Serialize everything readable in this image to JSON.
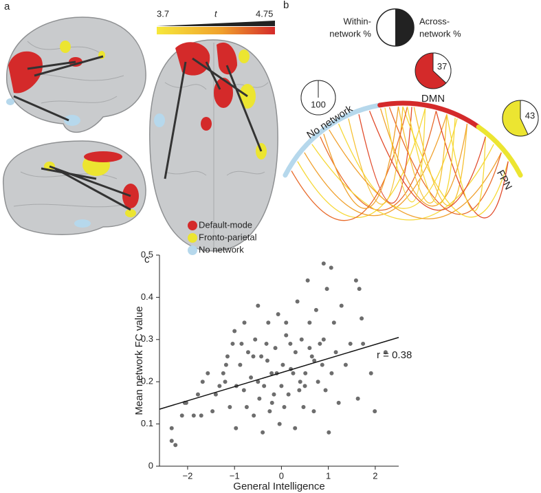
{
  "panel_labels": [
    "a",
    "b",
    "c"
  ],
  "colorbar": {
    "min": "3.7",
    "label": "t",
    "max": "4.75"
  },
  "legend": [
    {
      "name": "Default-mode",
      "color": "#d42a2a"
    },
    {
      "name": "Fronto-parietal",
      "color": "#ece531"
    },
    {
      "name": "No network",
      "color": "#b6d8ec"
    }
  ],
  "pie_key": {
    "within": [
      "Within-",
      "network %"
    ],
    "across": [
      "Across-",
      "network %"
    ]
  },
  "networks": [
    {
      "name": "No network",
      "within_pct": 100,
      "color": "#b6d8ec"
    },
    {
      "name": "DMN",
      "within_pct": 37,
      "color": "#d42a2a"
    },
    {
      "name": "FPN",
      "within_pct": 43,
      "color": "#ece531"
    }
  ],
  "chart_data": {
    "type": "scatter",
    "xlabel": "General Intelligence",
    "ylabel": "Mean network FC value",
    "annotation": "r = 0.38",
    "color": "#6d6d6d",
    "xlim": [
      -2.6,
      2.5
    ],
    "ylim": [
      0,
      0.5
    ],
    "xticks": [
      {
        "value": -2,
        "label": "−2"
      },
      {
        "value": -1,
        "label": "−1"
      },
      0,
      1,
      2
    ],
    "yticks": [
      0,
      0.1,
      0.2,
      0.3,
      0.4,
      0.5
    ],
    "fit_line": {
      "x": [
        -2.6,
        2.5
      ],
      "y": [
        0.135,
        0.305
      ]
    },
    "x": [
      -2.34,
      -2.26,
      -2.34,
      -2.12,
      -2.06,
      -2.03,
      -1.87,
      -1.78,
      -1.71,
      -1.68,
      -1.57,
      -1.47,
      -1.4,
      -1.32,
      -1.24,
      -1.18,
      -1.15,
      -1.1,
      -1.04,
      -1.0,
      -0.97,
      -0.96,
      -0.88,
      -0.85,
      -0.79,
      -0.74,
      -0.71,
      -0.65,
      -0.59,
      -0.56,
      -0.5,
      -0.47,
      -0.43,
      -0.4,
      -0.37,
      -0.32,
      -0.28,
      -0.25,
      -0.21,
      -0.16,
      -0.13,
      -0.07,
      -0.04,
      0,
      0.03,
      0.06,
      0.1,
      0.15,
      0.19,
      0.25,
      0.29,
      0.34,
      0.38,
      0.43,
      0.47,
      0.51,
      0.56,
      0.6,
      0.65,
      0.69,
      0.74,
      0.78,
      0.82,
      0.87,
      0.9,
      0.94,
      0.97,
      1.01,
      1.06,
      1.07,
      1.12,
      1.16,
      1.22,
      1.28,
      1.37,
      1.47,
      1.59,
      1.63,
      1.66,
      1.71,
      1.74,
      1.91,
      1.99,
      2.22,
      -0.5,
      -0.3,
      0.2,
      0.4,
      0.6,
      -0.8,
      -1.2,
      0.1,
      0.7,
      -0.1,
      0.3,
      0.9,
      -0.6,
      0.5,
      -0.2
    ],
    "y": [
      0.06,
      0.05,
      0.09,
      0.12,
      0.15,
      0.15,
      0.12,
      0.17,
      0.12,
      0.2,
      0.22,
      0.13,
      0.17,
      0.19,
      0.22,
      0.24,
      0.26,
      0.14,
      0.29,
      0.32,
      0.09,
      0.19,
      0.24,
      0.29,
      0.34,
      0.14,
      0.27,
      0.21,
      0.12,
      0.3,
      0.38,
      0.16,
      0.26,
      0.08,
      0.19,
      0.29,
      0.34,
      0.13,
      0.22,
      0.17,
      0.28,
      0.36,
      0.1,
      0.19,
      0.24,
      0.14,
      0.34,
      0.17,
      0.29,
      0.22,
      0.09,
      0.39,
      0.18,
      0.3,
      0.14,
      0.22,
      0.44,
      0.34,
      0.26,
      0.13,
      0.37,
      0.2,
      0.29,
      0.24,
      0.48,
      0.18,
      0.42,
      0.08,
      0.47,
      0.22,
      0.34,
      0.27,
      0.15,
      0.38,
      0.24,
      0.29,
      0.44,
      0.16,
      0.42,
      0.35,
      0.29,
      0.22,
      0.13,
      0.27,
      0.2,
      0.25,
      0.23,
      0.2,
      0.28,
      0.18,
      0.2,
      0.31,
      0.25,
      0.22,
      0.27,
      0.3,
      0.26,
      0.19,
      0.15
    ]
  }
}
